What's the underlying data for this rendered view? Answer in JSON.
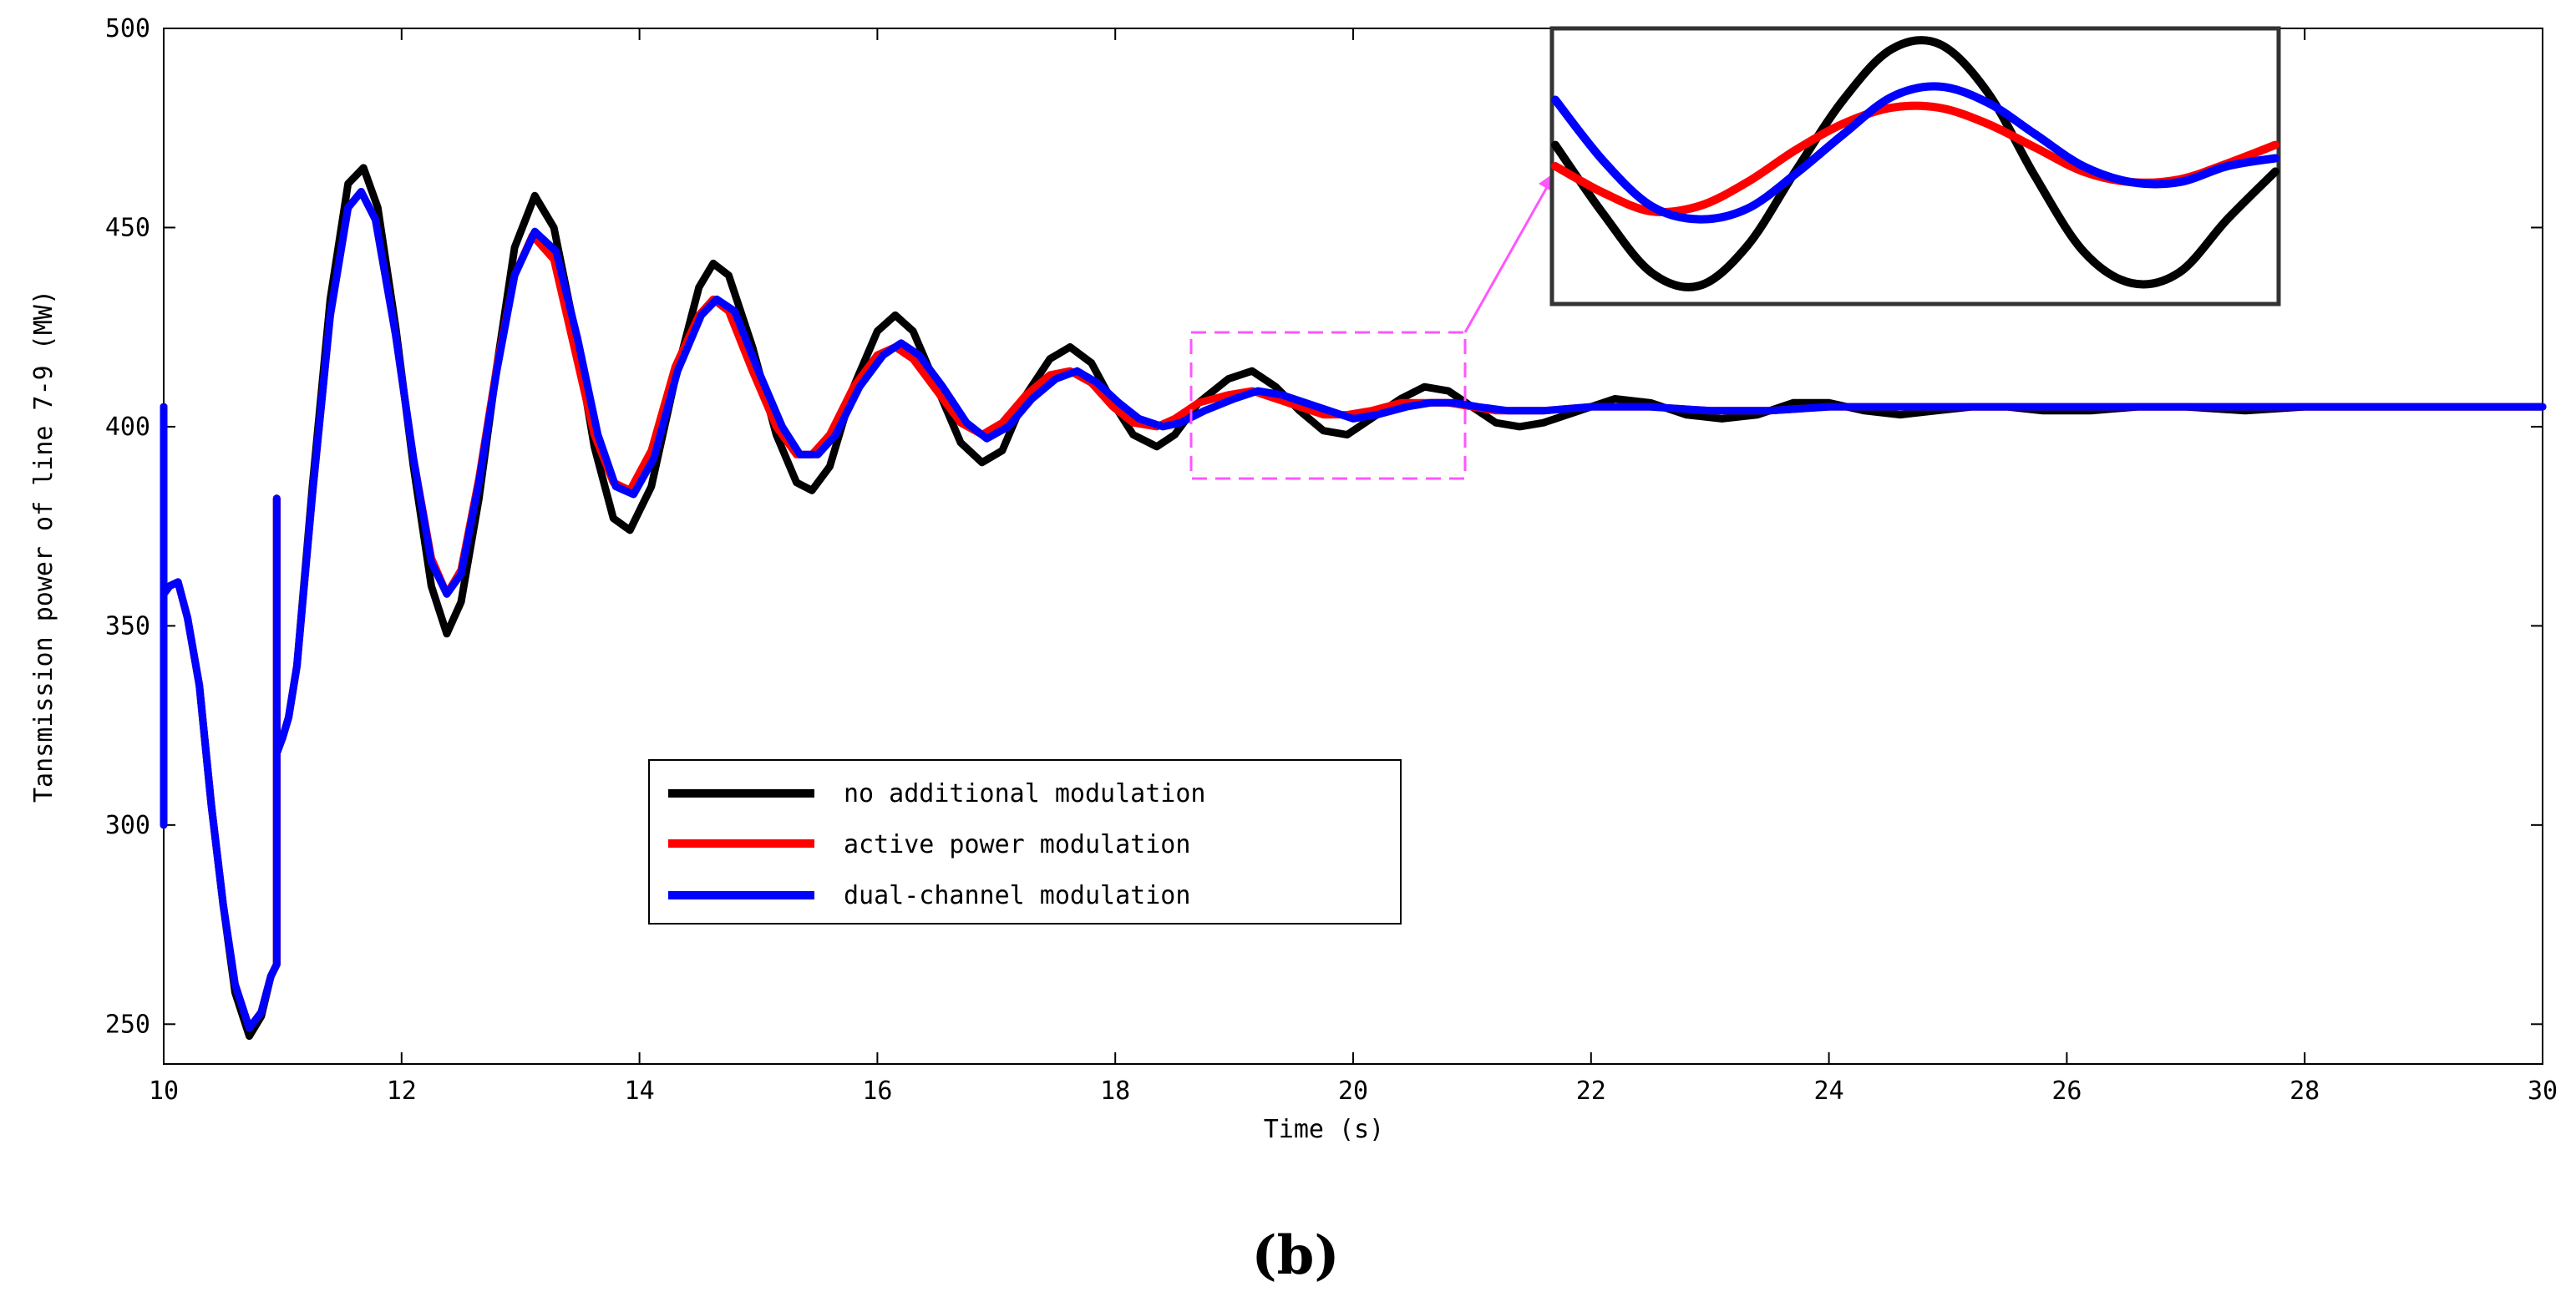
{
  "chart_data": {
    "type": "line",
    "xlabel": "Time (s)",
    "ylabel": "Tansmission power of line 7-9 (MW)",
    "xlim": [
      10,
      30
    ],
    "ylim": [
      240,
      500
    ],
    "xticks": [
      10,
      12,
      14,
      16,
      18,
      20,
      22,
      24,
      26,
      28,
      30
    ],
    "yticks": [
      250,
      300,
      350,
      400,
      450,
      500
    ],
    "legend_position": "lower-center-left",
    "series": [
      {
        "name": "no additional modulation",
        "color": "#000000",
        "points": [
          [
            10.0,
            300
          ],
          [
            10.0,
            405
          ],
          [
            10.0,
            358
          ],
          [
            10.05,
            360
          ],
          [
            10.12,
            361
          ],
          [
            10.2,
            352
          ],
          [
            10.3,
            335
          ],
          [
            10.4,
            305
          ],
          [
            10.5,
            280
          ],
          [
            10.6,
            258
          ],
          [
            10.72,
            247
          ],
          [
            10.82,
            252
          ],
          [
            10.9,
            262
          ],
          [
            10.95,
            265
          ],
          [
            10.95,
            382
          ],
          [
            10.95,
            318
          ],
          [
            11.0,
            322
          ],
          [
            11.05,
            327
          ],
          [
            11.12,
            340
          ],
          [
            11.25,
            385
          ],
          [
            11.4,
            432
          ],
          [
            11.55,
            461
          ],
          [
            11.68,
            465
          ],
          [
            11.8,
            455
          ],
          [
            11.95,
            425
          ],
          [
            12.1,
            390
          ],
          [
            12.25,
            360
          ],
          [
            12.38,
            348
          ],
          [
            12.5,
            356
          ],
          [
            12.65,
            382
          ],
          [
            12.8,
            415
          ],
          [
            12.95,
            445
          ],
          [
            13.12,
            458
          ],
          [
            13.28,
            450
          ],
          [
            13.45,
            425
          ],
          [
            13.62,
            395
          ],
          [
            13.78,
            377
          ],
          [
            13.92,
            374
          ],
          [
            14.1,
            385
          ],
          [
            14.3,
            412
          ],
          [
            14.5,
            435
          ],
          [
            14.62,
            441
          ],
          [
            14.75,
            438
          ],
          [
            14.95,
            420
          ],
          [
            15.15,
            398
          ],
          [
            15.32,
            386
          ],
          [
            15.45,
            384
          ],
          [
            15.6,
            390
          ],
          [
            15.8,
            410
          ],
          [
            16.0,
            424
          ],
          [
            16.15,
            428
          ],
          [
            16.3,
            424
          ],
          [
            16.5,
            410
          ],
          [
            16.7,
            396
          ],
          [
            16.88,
            391
          ],
          [
            17.05,
            394
          ],
          [
            17.25,
            408
          ],
          [
            17.45,
            417
          ],
          [
            17.62,
            420
          ],
          [
            17.8,
            416
          ],
          [
            17.98,
            406
          ],
          [
            18.15,
            398
          ],
          [
            18.35,
            395
          ],
          [
            18.5,
            398
          ],
          [
            18.7,
            406
          ],
          [
            18.95,
            412
          ],
          [
            19.15,
            414
          ],
          [
            19.35,
            410
          ],
          [
            19.55,
            404
          ],
          [
            19.75,
            399
          ],
          [
            19.95,
            398
          ],
          [
            20.15,
            402
          ],
          [
            20.4,
            407
          ],
          [
            20.6,
            410
          ],
          [
            20.8,
            409
          ],
          [
            21.0,
            405
          ],
          [
            21.2,
            401
          ],
          [
            21.4,
            400
          ],
          [
            21.6,
            401
          ],
          [
            21.9,
            404
          ],
          [
            22.2,
            407
          ],
          [
            22.5,
            406
          ],
          [
            22.8,
            403
          ],
          [
            23.1,
            402
          ],
          [
            23.4,
            403
          ],
          [
            23.7,
            406
          ],
          [
            24.0,
            406
          ],
          [
            24.3,
            404
          ],
          [
            24.6,
            403
          ],
          [
            24.9,
            404
          ],
          [
            25.2,
            405
          ],
          [
            25.5,
            405
          ],
          [
            25.8,
            404
          ],
          [
            26.2,
            404
          ],
          [
            26.6,
            405
          ],
          [
            27.0,
            405
          ],
          [
            27.5,
            404
          ],
          [
            28.0,
            405
          ],
          [
            29.0,
            405
          ],
          [
            30.0,
            405
          ]
        ]
      },
      {
        "name": "active power modulation",
        "color": "#ff0000",
        "points": [
          [
            10.0,
            300
          ],
          [
            10.0,
            405
          ],
          [
            10.0,
            358
          ],
          [
            10.05,
            360
          ],
          [
            10.12,
            361
          ],
          [
            10.2,
            352
          ],
          [
            10.3,
            335
          ],
          [
            10.4,
            305
          ],
          [
            10.5,
            280
          ],
          [
            10.6,
            260
          ],
          [
            10.72,
            249
          ],
          [
            10.82,
            253
          ],
          [
            10.9,
            262
          ],
          [
            10.95,
            265
          ],
          [
            10.95,
            382
          ],
          [
            10.95,
            318
          ],
          [
            11.0,
            322
          ],
          [
            11.05,
            327
          ],
          [
            11.12,
            340
          ],
          [
            11.25,
            383
          ],
          [
            11.4,
            428
          ],
          [
            11.55,
            455
          ],
          [
            11.66,
            459
          ],
          [
            11.78,
            452
          ],
          [
            11.95,
            423
          ],
          [
            12.1,
            392
          ],
          [
            12.25,
            367
          ],
          [
            12.38,
            358
          ],
          [
            12.5,
            364
          ],
          [
            12.65,
            387
          ],
          [
            12.8,
            415
          ],
          [
            12.95,
            438
          ],
          [
            13.1,
            448
          ],
          [
            13.28,
            442
          ],
          [
            13.45,
            420
          ],
          [
            13.62,
            398
          ],
          [
            13.78,
            386
          ],
          [
            13.92,
            384
          ],
          [
            14.1,
            394
          ],
          [
            14.3,
            415
          ],
          [
            14.5,
            428
          ],
          [
            14.62,
            432
          ],
          [
            14.75,
            429
          ],
          [
            14.95,
            414
          ],
          [
            15.15,
            400
          ],
          [
            15.32,
            393
          ],
          [
            15.45,
            393
          ],
          [
            15.6,
            398
          ],
          [
            15.8,
            410
          ],
          [
            16.0,
            418
          ],
          [
            16.15,
            420
          ],
          [
            16.3,
            417
          ],
          [
            16.5,
            409
          ],
          [
            16.7,
            401
          ],
          [
            16.88,
            398
          ],
          [
            17.05,
            401
          ],
          [
            17.25,
            408
          ],
          [
            17.45,
            413
          ],
          [
            17.62,
            414
          ],
          [
            17.8,
            411
          ],
          [
            17.98,
            405
          ],
          [
            18.15,
            401
          ],
          [
            18.35,
            400
          ],
          [
            18.5,
            402
          ],
          [
            18.7,
            406
          ],
          [
            18.95,
            408
          ],
          [
            19.15,
            409
          ],
          [
            19.35,
            407
          ],
          [
            19.55,
            405
          ],
          [
            19.75,
            403
          ],
          [
            19.95,
            403
          ],
          [
            20.15,
            404
          ],
          [
            20.4,
            406
          ],
          [
            20.6,
            406
          ],
          [
            20.8,
            406
          ],
          [
            21.0,
            405
          ],
          [
            21.2,
            404
          ],
          [
            21.4,
            404
          ],
          [
            21.6,
            404
          ],
          [
            22.0,
            405
          ],
          [
            22.5,
            405
          ],
          [
            23.0,
            404
          ],
          [
            23.5,
            404
          ],
          [
            24.0,
            405
          ],
          [
            25.0,
            405
          ],
          [
            26.0,
            405
          ],
          [
            27.0,
            405
          ],
          [
            28.0,
            405
          ],
          [
            29.0,
            405
          ],
          [
            30.0,
            405
          ]
        ]
      },
      {
        "name": "dual-channel modulation",
        "color": "#0000ff",
        "points": [
          [
            10.0,
            300
          ],
          [
            10.0,
            405
          ],
          [
            10.0,
            358
          ],
          [
            10.05,
            360
          ],
          [
            10.12,
            361
          ],
          [
            10.2,
            352
          ],
          [
            10.3,
            335
          ],
          [
            10.4,
            305
          ],
          [
            10.5,
            280
          ],
          [
            10.6,
            260
          ],
          [
            10.72,
            249
          ],
          [
            10.82,
            253
          ],
          [
            10.9,
            262
          ],
          [
            10.95,
            265
          ],
          [
            10.95,
            382
          ],
          [
            10.95,
            318
          ],
          [
            11.0,
            322
          ],
          [
            11.05,
            327
          ],
          [
            11.12,
            340
          ],
          [
            11.25,
            383
          ],
          [
            11.4,
            428
          ],
          [
            11.55,
            455
          ],
          [
            11.66,
            459
          ],
          [
            11.78,
            452
          ],
          [
            11.95,
            423
          ],
          [
            12.1,
            392
          ],
          [
            12.25,
            366
          ],
          [
            12.38,
            358
          ],
          [
            12.5,
            363
          ],
          [
            12.65,
            386
          ],
          [
            12.8,
            414
          ],
          [
            12.95,
            438
          ],
          [
            13.12,
            449
          ],
          [
            13.3,
            444
          ],
          [
            13.48,
            422
          ],
          [
            13.65,
            398
          ],
          [
            13.8,
            385
          ],
          [
            13.95,
            383
          ],
          [
            14.12,
            392
          ],
          [
            14.32,
            414
          ],
          [
            14.52,
            428
          ],
          [
            14.65,
            432
          ],
          [
            14.8,
            429
          ],
          [
            15.0,
            414
          ],
          [
            15.2,
            400
          ],
          [
            15.35,
            393
          ],
          [
            15.5,
            393
          ],
          [
            15.65,
            398
          ],
          [
            15.85,
            410
          ],
          [
            16.05,
            418
          ],
          [
            16.2,
            421
          ],
          [
            16.35,
            418
          ],
          [
            16.55,
            410
          ],
          [
            16.75,
            401
          ],
          [
            16.92,
            397
          ],
          [
            17.1,
            400
          ],
          [
            17.3,
            407
          ],
          [
            17.5,
            412
          ],
          [
            17.68,
            414
          ],
          [
            17.85,
            411
          ],
          [
            18.03,
            406
          ],
          [
            18.2,
            402
          ],
          [
            18.4,
            400
          ],
          [
            18.55,
            401
          ],
          [
            18.75,
            404
          ],
          [
            19.0,
            407
          ],
          [
            19.2,
            409
          ],
          [
            19.4,
            408
          ],
          [
            19.6,
            406
          ],
          [
            19.8,
            404
          ],
          [
            20.0,
            402
          ],
          [
            20.2,
            403
          ],
          [
            20.45,
            405
          ],
          [
            20.65,
            406
          ],
          [
            20.85,
            406
          ],
          [
            21.05,
            405
          ],
          [
            21.3,
            404
          ],
          [
            21.6,
            404
          ],
          [
            22.0,
            405
          ],
          [
            22.5,
            405
          ],
          [
            23.0,
            404
          ],
          [
            23.5,
            404
          ],
          [
            24.0,
            405
          ],
          [
            25.0,
            405
          ],
          [
            26.0,
            405
          ],
          [
            27.0,
            405
          ],
          [
            28.0,
            405
          ],
          [
            29.0,
            405
          ],
          [
            30.0,
            405
          ]
        ]
      }
    ],
    "inset": {
      "description_of_zoom": "zoomed view of the region around t = 18.6–20.9 s",
      "source_xlim": [
        18.6,
        20.9
      ],
      "source_ylim": [
        388,
        424
      ],
      "series": [
        {
          "name": "no additional modulation",
          "color": "#000000",
          "values": [
            0.58,
            0.32,
            0.1,
            0.05,
            0.2,
            0.48,
            0.75,
            0.94,
            0.96,
            0.78,
            0.46,
            0.18,
            0.06,
            0.1,
            0.3,
            0.48
          ]
        },
        {
          "name": "active power modulation",
          "color": "#ff0000",
          "values": [
            0.5,
            0.4,
            0.33,
            0.35,
            0.44,
            0.56,
            0.66,
            0.72,
            0.72,
            0.66,
            0.57,
            0.48,
            0.44,
            0.45,
            0.51,
            0.58
          ]
        },
        {
          "name": "dual-channel modulation",
          "color": "#0000ff",
          "values": [
            0.75,
            0.52,
            0.35,
            0.3,
            0.34,
            0.47,
            0.62,
            0.76,
            0.8,
            0.74,
            0.62,
            0.5,
            0.44,
            0.44,
            0.5,
            0.53
          ]
        }
      ]
    },
    "panel_label": "(b)"
  }
}
